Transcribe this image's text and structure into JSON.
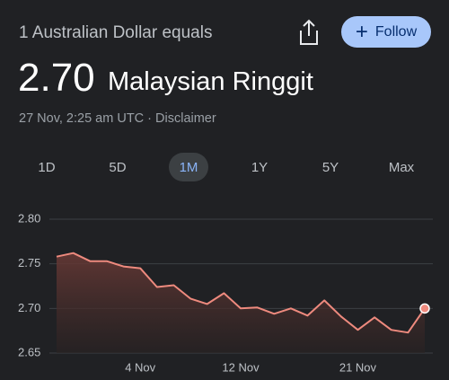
{
  "header": {
    "subtitle": "1 Australian Dollar equals",
    "rate": "2.70",
    "currency": "Malaysian Ringgit",
    "timestamp": "27 Nov, 2:25 am UTC · Disclaimer",
    "follow": "Follow"
  },
  "tabs": {
    "items": [
      "1D",
      "5D",
      "1M",
      "1Y",
      "5Y",
      "Max"
    ],
    "selected": 2
  },
  "chart_data": {
    "type": "line",
    "categories": [
      null,
      null,
      null,
      null,
      null,
      "4 Nov",
      null,
      null,
      null,
      null,
      null,
      "12 Nov",
      null,
      null,
      null,
      null,
      null,
      null,
      "21 Nov",
      null,
      null,
      null,
      null
    ],
    "values": [
      2.758,
      2.762,
      2.753,
      2.753,
      2.747,
      2.745,
      2.724,
      2.726,
      2.711,
      2.705,
      2.717,
      2.7,
      2.701,
      2.694,
      2.7,
      2.692,
      2.709,
      2.691,
      2.676,
      2.69,
      2.676,
      2.673,
      2.7
    ],
    "color": "#ee8a7e",
    "ylim": [
      2.65,
      2.8
    ],
    "yticks": [
      {
        "value": 2.8,
        "label": "2.80"
      },
      2.75,
      {
        "value": 2.7,
        "label": "2.70"
      },
      2.65
    ],
    "grid": true
  }
}
